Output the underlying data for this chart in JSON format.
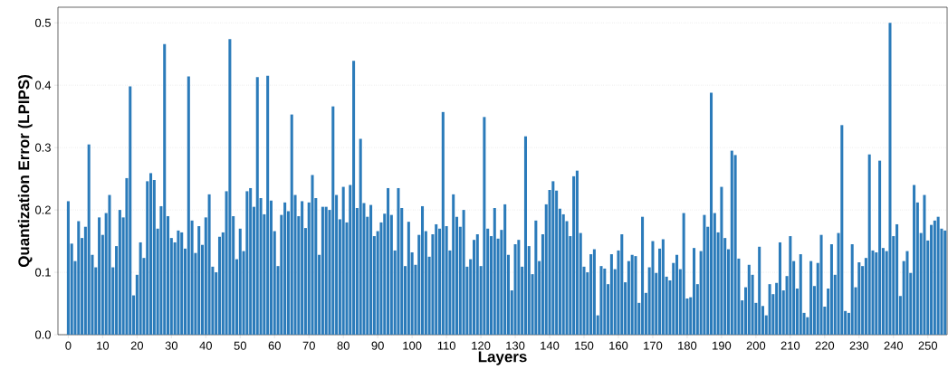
{
  "chart_data": {
    "type": "bar",
    "xlabel": "Layers",
    "ylabel": "Quantization Error (LPIPS)",
    "color": "#2b7bba",
    "grid": "y",
    "x": [
      0,
      1,
      2,
      3,
      4,
      5,
      6,
      7,
      8,
      9,
      10,
      11,
      12,
      13,
      14,
      15,
      16,
      17,
      18,
      19,
      20,
      21,
      22,
      23,
      24,
      25,
      26,
      27,
      28,
      29,
      30,
      31,
      32,
      33,
      34,
      35,
      36,
      37,
      38,
      39,
      40,
      41,
      42,
      43,
      44,
      45,
      46,
      47,
      48,
      49,
      50,
      51,
      52,
      53,
      54,
      55,
      56,
      57,
      58,
      59,
      60,
      61,
      62,
      63,
      64,
      65,
      66,
      67,
      68,
      69,
      70,
      71,
      72,
      73,
      74,
      75,
      76,
      77,
      78,
      79,
      80,
      81,
      82,
      83,
      84,
      85,
      86,
      87,
      88,
      89,
      90,
      91,
      92,
      93,
      94,
      95,
      96,
      97,
      98,
      99,
      100,
      101,
      102,
      103,
      104,
      105,
      106,
      107,
      108,
      109,
      110,
      111,
      112,
      113,
      114,
      115,
      116,
      117,
      118,
      119,
      120,
      121,
      122,
      123,
      124,
      125,
      126,
      127,
      128,
      129,
      130,
      131,
      132,
      133,
      134,
      135,
      136,
      137,
      138,
      139,
      140,
      141,
      142,
      143,
      144,
      145,
      146,
      147,
      148,
      149,
      150,
      151,
      152,
      153,
      154,
      155,
      156,
      157,
      158,
      159,
      160,
      161,
      162,
      163,
      164,
      165,
      166,
      167,
      168,
      169,
      170,
      171,
      172,
      173,
      174,
      175,
      176,
      177,
      178,
      179,
      180,
      181,
      182,
      183,
      184,
      185,
      186,
      187,
      188,
      189,
      190,
      191,
      192,
      193,
      194,
      195,
      196,
      197,
      198,
      199,
      200,
      201,
      202,
      203,
      204,
      205,
      206,
      207,
      208,
      209,
      210,
      211,
      212,
      213,
      214,
      215,
      216,
      217,
      218,
      219,
      220,
      221,
      222,
      223,
      224,
      225,
      226,
      227,
      228,
      229,
      230,
      231,
      232,
      233,
      234,
      235,
      236,
      237,
      238,
      239,
      240,
      241,
      242,
      243,
      244,
      245,
      246,
      247,
      248,
      249,
      250,
      251,
      252,
      253,
      254,
      255
    ],
    "values": [
      0.214,
      0.146,
      0.118,
      0.182,
      0.155,
      0.173,
      0.305,
      0.128,
      0.108,
      0.188,
      0.16,
      0.195,
      0.224,
      0.108,
      0.142,
      0.2,
      0.188,
      0.251,
      0.398,
      0.063,
      0.096,
      0.148,
      0.123,
      0.246,
      0.259,
      0.248,
      0.17,
      0.206,
      0.466,
      0.19,
      0.155,
      0.148,
      0.167,
      0.164,
      0.138,
      0.414,
      0.183,
      0.131,
      0.174,
      0.144,
      0.188,
      0.225,
      0.109,
      0.1,
      0.157,
      0.164,
      0.23,
      0.474,
      0.19,
      0.121,
      0.17,
      0.134,
      0.23,
      0.235,
      0.205,
      0.413,
      0.219,
      0.193,
      0.415,
      0.215,
      0.166,
      0.11,
      0.192,
      0.212,
      0.198,
      0.353,
      0.224,
      0.19,
      0.214,
      0.171,
      0.212,
      0.256,
      0.219,
      0.128,
      0.205,
      0.205,
      0.2,
      0.366,
      0.224,
      0.185,
      0.237,
      0.18,
      0.24,
      0.439,
      0.203,
      0.314,
      0.211,
      0.189,
      0.208,
      0.158,
      0.166,
      0.18,
      0.194,
      0.235,
      0.192,
      0.135,
      0.235,
      0.203,
      0.11,
      0.181,
      0.132,
      0.112,
      0.16,
      0.206,
      0.166,
      0.125,
      0.161,
      0.177,
      0.17,
      0.357,
      0.174,
      0.135,
      0.225,
      0.189,
      0.173,
      0.2,
      0.109,
      0.121,
      0.152,
      0.161,
      0.11,
      0.349,
      0.17,
      0.158,
      0.203,
      0.154,
      0.168,
      0.209,
      0.128,
      0.071,
      0.145,
      0.152,
      0.109,
      0.318,
      0.142,
      0.097,
      0.183,
      0.118,
      0.161,
      0.209,
      0.232,
      0.246,
      0.231,
      0.202,
      0.193,
      0.182,
      0.158,
      0.254,
      0.263,
      0.163,
      0.109,
      0.1,
      0.129,
      0.137,
      0.031,
      0.11,
      0.106,
      0.081,
      0.129,
      0.105,
      0.135,
      0.161,
      0.084,
      0.118,
      0.128,
      0.126,
      0.051,
      0.189,
      0.067,
      0.108,
      0.15,
      0.099,
      0.138,
      0.153,
      0.093,
      0.087,
      0.115,
      0.128,
      0.105,
      0.195,
      0.058,
      0.06,
      0.139,
      0.081,
      0.134,
      0.192,
      0.173,
      0.388,
      0.195,
      0.164,
      0.237,
      0.155,
      0.137,
      0.295,
      0.288,
      0.122,
      0.055,
      0.076,
      0.112,
      0.096,
      0.051,
      0.141,
      0.046,
      0.031,
      0.081,
      0.065,
      0.083,
      0.148,
      0.071,
      0.094,
      0.158,
      0.118,
      0.074,
      0.129,
      0.035,
      0.028,
      0.118,
      0.078,
      0.115,
      0.16,
      0.045,
      0.074,
      0.145,
      0.096,
      0.163,
      0.336,
      0.038,
      0.035,
      0.145,
      0.076,
      0.116,
      0.11,
      0.123,
      0.289,
      0.135,
      0.132,
      0.279,
      0.139,
      0.134,
      0.5,
      0.158,
      0.177,
      0.062,
      0.118,
      0.134,
      0.099,
      0.24,
      0.212,
      0.163,
      0.224,
      0.151,
      0.176,
      0.183,
      0.189,
      0.17,
      0.167
    ],
    "xlim": [
      -3,
      255.6
    ],
    "xticks": [
      0,
      10,
      20,
      30,
      40,
      50,
      60,
      70,
      80,
      90,
      100,
      110,
      120,
      130,
      140,
      150,
      160,
      170,
      180,
      190,
      200,
      210,
      220,
      230,
      240,
      250
    ],
    "ylim": [
      0,
      0.525
    ],
    "yticks": [
      {
        "value": 0,
        "label": "0.0"
      },
      0.1,
      0.2,
      0.3,
      0.4,
      0.5
    ]
  }
}
